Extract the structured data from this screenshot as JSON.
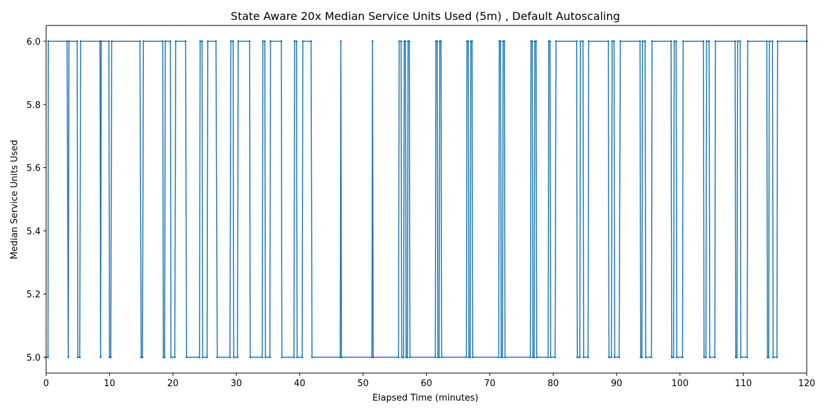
{
  "chart_data": {
    "type": "line",
    "title": "State Aware 20x Median Service Units Used (5m) , Default Autoscaling",
    "xlabel": "Elapsed Time (minutes)",
    "ylabel": "Median Service Units Used",
    "xlim": [
      0,
      120
    ],
    "ylim": [
      4.95,
      6.05
    ],
    "xticks": [
      0,
      10,
      20,
      30,
      40,
      50,
      60,
      70,
      80,
      90,
      100,
      110,
      120
    ],
    "yticks": [
      "5.0",
      "5.2",
      "5.4",
      "5.6",
      "5.8",
      "6.0"
    ],
    "grid": false,
    "line_color": "#1f77b4",
    "series": [
      {
        "values_note": "step series, minutes -> median units",
        "points": [
          [
            0.0,
            5.0
          ],
          [
            0.3,
            5.0
          ],
          [
            0.35,
            6.0
          ],
          [
            3.3,
            6.0
          ],
          [
            3.5,
            5.0
          ],
          [
            3.6,
            6.0
          ],
          [
            4.9,
            6.0
          ],
          [
            5.0,
            5.0
          ],
          [
            5.3,
            5.0
          ],
          [
            5.45,
            6.0
          ],
          [
            8.5,
            6.0
          ],
          [
            8.6,
            5.0
          ],
          [
            8.7,
            6.0
          ],
          [
            9.9,
            6.0
          ],
          [
            10.0,
            5.0
          ],
          [
            10.2,
            5.0
          ],
          [
            10.35,
            6.0
          ],
          [
            14.8,
            6.0
          ],
          [
            15.0,
            5.0
          ],
          [
            15.2,
            5.0
          ],
          [
            15.35,
            6.0
          ],
          [
            18.4,
            6.0
          ],
          [
            18.5,
            5.0
          ],
          [
            18.7,
            5.0
          ],
          [
            18.8,
            6.0
          ],
          [
            19.6,
            6.0
          ],
          [
            19.7,
            5.0
          ],
          [
            20.3,
            5.0
          ],
          [
            20.45,
            6.0
          ],
          [
            22.0,
            6.0
          ],
          [
            22.15,
            5.0
          ],
          [
            24.2,
            5.0
          ],
          [
            24.3,
            6.0
          ],
          [
            24.6,
            6.0
          ],
          [
            24.7,
            5.0
          ],
          [
            25.4,
            5.0
          ],
          [
            25.5,
            6.0
          ],
          [
            26.8,
            6.0
          ],
          [
            27.0,
            5.0
          ],
          [
            29.0,
            5.0
          ],
          [
            29.15,
            6.0
          ],
          [
            29.5,
            6.0
          ],
          [
            29.6,
            5.0
          ],
          [
            30.2,
            5.0
          ],
          [
            30.3,
            6.0
          ],
          [
            32.1,
            6.0
          ],
          [
            32.2,
            5.0
          ],
          [
            34.1,
            5.0
          ],
          [
            34.2,
            6.0
          ],
          [
            34.5,
            6.0
          ],
          [
            34.6,
            5.0
          ],
          [
            35.3,
            5.0
          ],
          [
            35.4,
            6.0
          ],
          [
            37.1,
            6.0
          ],
          [
            37.2,
            5.0
          ],
          [
            39.1,
            5.0
          ],
          [
            39.2,
            6.0
          ],
          [
            39.5,
            6.0
          ],
          [
            39.6,
            5.0
          ],
          [
            40.4,
            5.0
          ],
          [
            40.5,
            6.0
          ],
          [
            41.8,
            6.0
          ],
          [
            41.95,
            5.0
          ],
          [
            46.4,
            5.0
          ],
          [
            46.5,
            6.0
          ],
          [
            46.6,
            5.0
          ],
          [
            51.4,
            5.0
          ],
          [
            51.5,
            6.0
          ],
          [
            51.6,
            5.0
          ],
          [
            55.6,
            5.0
          ],
          [
            55.7,
            6.0
          ],
          [
            56.0,
            6.0
          ],
          [
            56.1,
            5.0
          ],
          [
            56.4,
            5.0
          ],
          [
            56.5,
            6.0
          ],
          [
            56.7,
            6.0
          ],
          [
            56.8,
            5.0
          ],
          [
            57.0,
            5.0
          ],
          [
            57.1,
            6.0
          ],
          [
            57.3,
            6.0
          ],
          [
            57.4,
            5.0
          ],
          [
            61.4,
            5.0
          ],
          [
            61.5,
            6.0
          ],
          [
            61.7,
            6.0
          ],
          [
            61.8,
            5.0
          ],
          [
            62.0,
            5.0
          ],
          [
            62.1,
            6.0
          ],
          [
            62.3,
            6.0
          ],
          [
            62.4,
            5.0
          ],
          [
            66.3,
            5.0
          ],
          [
            66.4,
            6.0
          ],
          [
            66.6,
            6.0
          ],
          [
            66.7,
            5.0
          ],
          [
            66.9,
            5.0
          ],
          [
            67.0,
            6.0
          ],
          [
            67.2,
            6.0
          ],
          [
            67.3,
            5.0
          ],
          [
            71.4,
            5.0
          ],
          [
            71.5,
            6.0
          ],
          [
            71.7,
            6.0
          ],
          [
            71.8,
            5.0
          ],
          [
            72.0,
            5.0
          ],
          [
            72.1,
            6.0
          ],
          [
            72.3,
            6.0
          ],
          [
            72.4,
            5.0
          ],
          [
            76.4,
            5.0
          ],
          [
            76.5,
            6.0
          ],
          [
            76.7,
            6.0
          ],
          [
            76.8,
            5.0
          ],
          [
            77.0,
            5.0
          ],
          [
            77.1,
            6.0
          ],
          [
            77.3,
            6.0
          ],
          [
            77.4,
            5.0
          ],
          [
            79.2,
            5.0
          ],
          [
            79.3,
            6.0
          ],
          [
            79.5,
            6.0
          ],
          [
            79.6,
            5.0
          ],
          [
            80.3,
            5.0
          ],
          [
            80.45,
            6.0
          ],
          [
            83.7,
            6.0
          ],
          [
            83.8,
            5.0
          ],
          [
            84.2,
            5.0
          ],
          [
            84.3,
            6.0
          ],
          [
            84.7,
            6.0
          ],
          [
            84.8,
            5.0
          ],
          [
            85.5,
            5.0
          ],
          [
            85.6,
            6.0
          ],
          [
            88.7,
            6.0
          ],
          [
            88.8,
            5.0
          ],
          [
            89.2,
            5.0
          ],
          [
            89.3,
            6.0
          ],
          [
            89.6,
            6.0
          ],
          [
            89.7,
            5.0
          ],
          [
            90.4,
            5.0
          ],
          [
            90.6,
            6.0
          ],
          [
            93.7,
            6.0
          ],
          [
            93.8,
            5.0
          ],
          [
            94.0,
            5.0
          ],
          [
            94.1,
            6.0
          ],
          [
            94.5,
            6.0
          ],
          [
            94.6,
            5.0
          ],
          [
            95.5,
            5.0
          ],
          [
            95.6,
            6.0
          ],
          [
            98.6,
            6.0
          ],
          [
            98.7,
            5.0
          ],
          [
            99.0,
            5.0
          ],
          [
            99.1,
            6.0
          ],
          [
            99.4,
            6.0
          ],
          [
            99.5,
            5.0
          ],
          [
            100.4,
            5.0
          ],
          [
            100.5,
            6.0
          ],
          [
            103.7,
            6.0
          ],
          [
            103.8,
            5.0
          ],
          [
            104.1,
            5.0
          ],
          [
            104.2,
            6.0
          ],
          [
            104.6,
            6.0
          ],
          [
            104.7,
            5.0
          ],
          [
            105.5,
            5.0
          ],
          [
            105.6,
            6.0
          ],
          [
            108.7,
            6.0
          ],
          [
            108.8,
            5.0
          ],
          [
            109.0,
            5.0
          ],
          [
            109.1,
            6.0
          ],
          [
            109.5,
            6.0
          ],
          [
            109.6,
            5.0
          ],
          [
            110.6,
            5.0
          ],
          [
            110.7,
            6.0
          ],
          [
            113.7,
            6.0
          ],
          [
            113.8,
            5.0
          ],
          [
            114.0,
            5.0
          ],
          [
            114.1,
            6.0
          ],
          [
            114.6,
            6.0
          ],
          [
            114.7,
            5.0
          ],
          [
            115.3,
            5.0
          ],
          [
            115.4,
            6.0
          ],
          [
            120.0,
            6.0
          ]
        ]
      }
    ]
  }
}
